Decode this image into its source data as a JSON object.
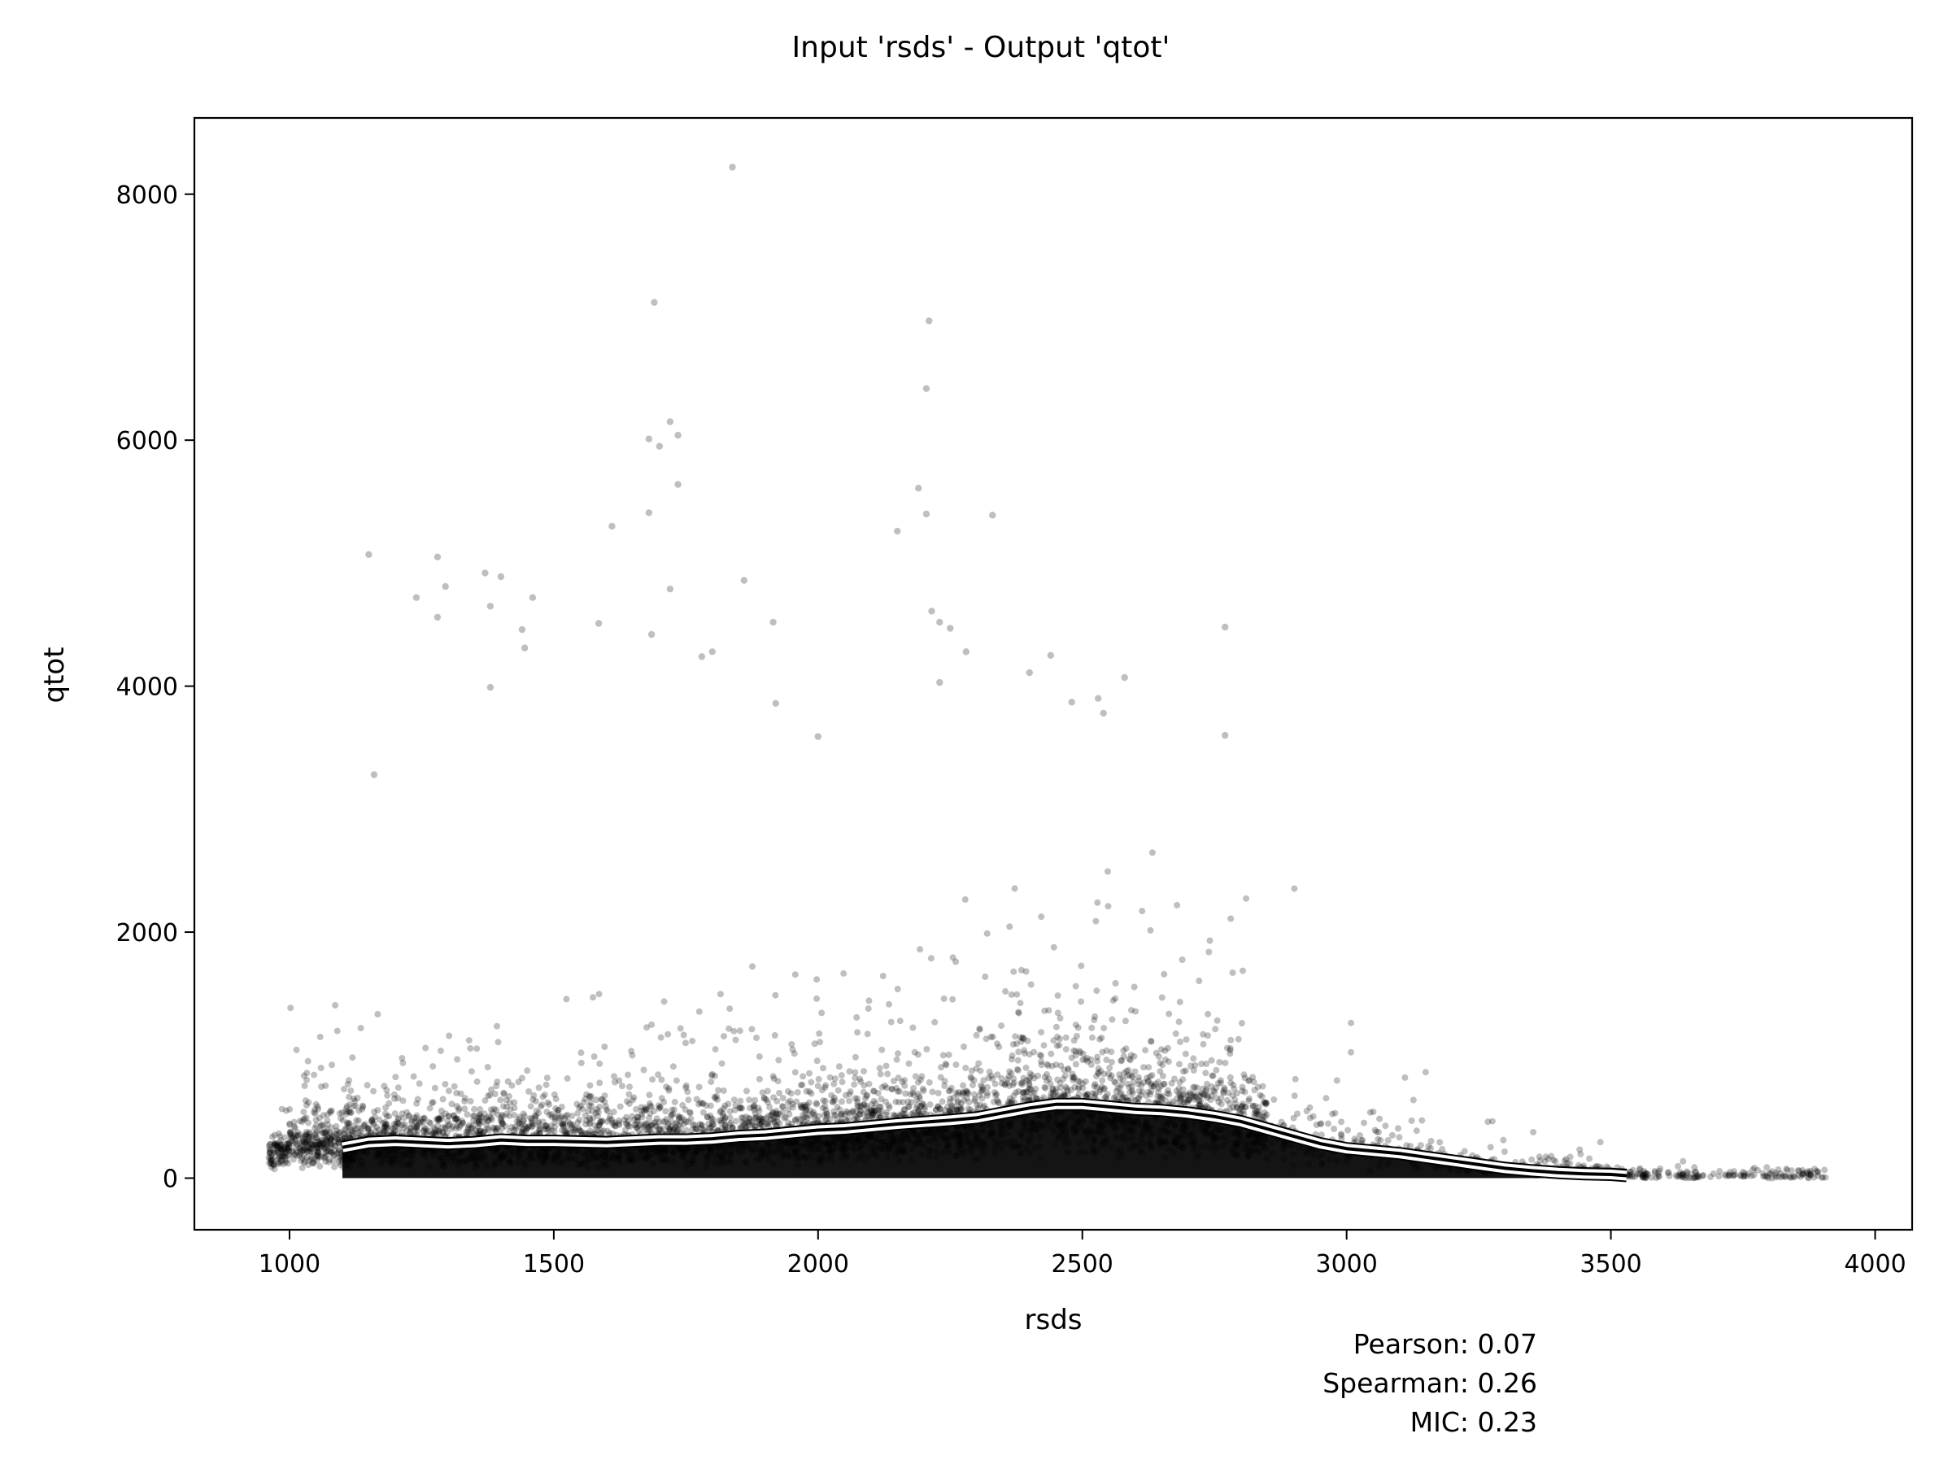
{
  "chart_data": {
    "type": "scatter",
    "title": "Input 'rsds' - Output 'qtot'",
    "xlabel": "rsds",
    "ylabel": "qtot",
    "xlim": [
      820,
      4070
    ],
    "ylim": [
      -420,
      8620
    ],
    "xticks": [
      1000,
      1500,
      2000,
      2500,
      3000,
      3500,
      4000
    ],
    "yticks": [
      0,
      2000,
      4000,
      6000,
      8000
    ],
    "grid": false,
    "point_color": "#000000",
    "point_opacity": 0.25,
    "trend_color": "#ffffff",
    "trend_outline_color": "#000000",
    "outliers": [
      [
        1838,
        8220
      ],
      [
        1690,
        7120
      ],
      [
        2210,
        6970
      ],
      [
        2205,
        6420
      ],
      [
        1720,
        6150
      ],
      [
        1680,
        6010
      ],
      [
        1735,
        6040
      ],
      [
        1700,
        5950
      ],
      [
        1735,
        5640
      ],
      [
        2190,
        5610
      ],
      [
        1680,
        5410
      ],
      [
        2205,
        5400
      ],
      [
        2330,
        5390
      ],
      [
        1610,
        5300
      ],
      [
        2150,
        5260
      ],
      [
        1150,
        5070
      ],
      [
        1280,
        5050
      ],
      [
        1860,
        4860
      ],
      [
        1370,
        4920
      ],
      [
        1400,
        4890
      ],
      [
        1295,
        4810
      ],
      [
        1720,
        4790
      ],
      [
        1240,
        4720
      ],
      [
        1460,
        4720
      ],
      [
        1380,
        4650
      ],
      [
        2215,
        4610
      ],
      [
        2770,
        4480
      ],
      [
        1915,
        4520
      ],
      [
        1585,
        4510
      ],
      [
        1440,
        4460
      ],
      [
        2230,
        4520
      ],
      [
        1685,
        4420
      ],
      [
        2250,
        4470
      ],
      [
        1280,
        4560
      ],
      [
        1445,
        4310
      ],
      [
        1800,
        4280
      ],
      [
        2440,
        4250
      ],
      [
        2280,
        4280
      ],
      [
        1780,
        4240
      ],
      [
        2400,
        4110
      ],
      [
        2580,
        4070
      ],
      [
        2530,
        3900
      ],
      [
        2480,
        3870
      ],
      [
        2540,
        3780
      ],
      [
        1380,
        3990
      ],
      [
        1920,
        3860
      ],
      [
        2770,
        3600
      ],
      [
        1160,
        3280
      ],
      [
        2230,
        4030
      ],
      [
        2000,
        3590
      ]
    ],
    "trend": {
      "x": [
        1100,
        1150,
        1200,
        1250,
        1300,
        1350,
        1400,
        1450,
        1500,
        1550,
        1600,
        1650,
        1700,
        1750,
        1800,
        1850,
        1900,
        1950,
        2000,
        2050,
        2100,
        2150,
        2200,
        2250,
        2300,
        2350,
        2400,
        2450,
        2500,
        2550,
        2600,
        2650,
        2700,
        2750,
        2800,
        2850,
        2900,
        2950,
        3000,
        3050,
        3100,
        3150,
        3200,
        3250,
        3300,
        3350,
        3400,
        3450,
        3500,
        3530
      ],
      "y": [
        250,
        290,
        300,
        290,
        280,
        290,
        310,
        300,
        300,
        295,
        290,
        300,
        310,
        310,
        320,
        340,
        350,
        370,
        390,
        400,
        420,
        440,
        455,
        470,
        490,
        530,
        570,
        600,
        600,
        580,
        560,
        550,
        530,
        500,
        460,
        400,
        340,
        280,
        240,
        220,
        200,
        170,
        140,
        110,
        80,
        60,
        45,
        35,
        30,
        20
      ]
    }
  },
  "stats": {
    "pearson": "Pearson: 0.07",
    "spearman": "Spearman: 0.26",
    "mic": "MIC: 0.23"
  }
}
